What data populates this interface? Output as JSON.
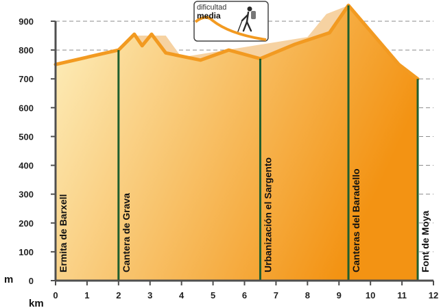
{
  "chart_data": {
    "type": "area",
    "xlabel": "km",
    "ylabel": "m",
    "xlim": [
      0,
      12
    ],
    "ylim": [
      0,
      900
    ],
    "xticks": [
      0,
      1,
      2,
      3,
      4,
      5,
      6,
      7,
      8,
      9,
      10,
      11,
      12
    ],
    "yticks": [
      0,
      100,
      200,
      300,
      400,
      500,
      600,
      700,
      800,
      900
    ],
    "grid": true,
    "x": [
      0,
      2,
      2.5,
      2.75,
      3.05,
      3.5,
      4.6,
      5.5,
      6.5,
      7.6,
      8.7,
      9.3,
      10.9,
      11.5
    ],
    "y": [
      750,
      800,
      855,
      815,
      855,
      790,
      765,
      800,
      770,
      820,
      860,
      955,
      750,
      700
    ],
    "shadow_profile": {
      "x": [
        2.6,
        3.5,
        4.0,
        8.0,
        8.6,
        9.3
      ],
      "y": [
        850,
        850,
        775,
        845,
        925,
        955
      ]
    },
    "waypoints": [
      {
        "km": 0,
        "label": "Ermita de Barxell"
      },
      {
        "km": 2,
        "label": "Cantera de Grava"
      },
      {
        "km": 6.5,
        "label": "Urbanización el Sargento"
      },
      {
        "km": 9.3,
        "label": "Canteras del Baradello"
      },
      {
        "km": 11.5,
        "label": "Font de Moya"
      }
    ],
    "badge": {
      "line1": "dificultad",
      "line2": "media"
    }
  },
  "colors": {
    "profile_line": "#f29a21",
    "fill_light": "#fdf0bf",
    "fill_dark": "#f39313",
    "shadow": "#f6d2a2",
    "marker": "#1f5e2e",
    "grid": "#8a8a8a",
    "axis": "#4f4f4f"
  }
}
